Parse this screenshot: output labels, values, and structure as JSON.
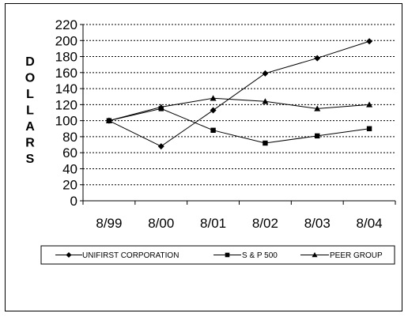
{
  "chart_data": {
    "type": "line",
    "title": "",
    "xlabel": "",
    "ylabel": "DOLLARS",
    "categories": [
      "8/99",
      "8/00",
      "8/01",
      "8/02",
      "8/03",
      "8/04"
    ],
    "ylim": [
      0,
      220
    ],
    "yticks": [
      0,
      20,
      40,
      60,
      80,
      100,
      120,
      140,
      160,
      180,
      200,
      220
    ],
    "grid": true,
    "legend_position": "bottom",
    "series": [
      {
        "name": "UNIFIRST CORPORATION",
        "marker": "diamond",
        "color": "#000000",
        "values": [
          100,
          68,
          113,
          159,
          178,
          199
        ]
      },
      {
        "name": "S & P 500",
        "marker": "square",
        "color": "#000000",
        "values": [
          100,
          115,
          88,
          72,
          81,
          90
        ]
      },
      {
        "name": "PEER GROUP",
        "marker": "triangle",
        "color": "#000000",
        "values": [
          100,
          117,
          128,
          124,
          115,
          120
        ]
      }
    ]
  }
}
